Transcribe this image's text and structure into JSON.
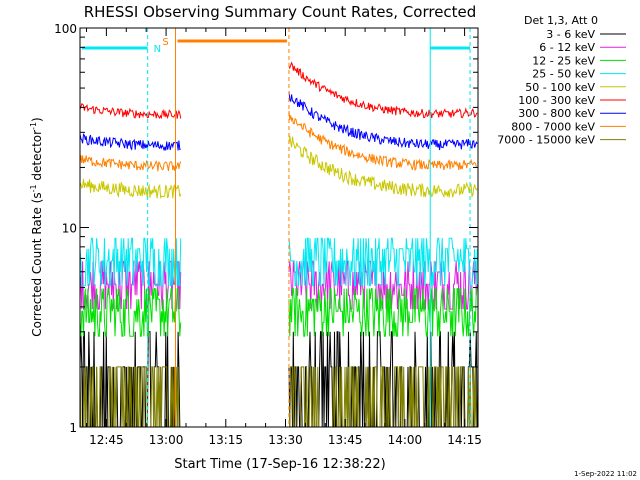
{
  "title": "RHESSI Observing Summary Count Rates, Corrected",
  "footer_date": "1-Sep-2022 11:02",
  "legend": {
    "header": "Det 1,3, Att 0"
  },
  "flags": {
    "n_label": "N",
    "s_label": "S"
  },
  "chart_data": {
    "type": "line",
    "title": "RHESSI Observing Summary Count Rates, Corrected",
    "xlabel": "Start Time (17-Sep-16 12:38:22)",
    "ylabel": "Corrected Count Rate (s⁻¹ detector⁻¹)",
    "ylabel_main": "Corrected Count Rate (s",
    "ylabel_sup1": "-1",
    "ylabel_mid": " detector",
    "ylabel_sup2": "-1",
    "ylabel_end": ")",
    "yscale": "log",
    "ylim": [
      1,
      100
    ],
    "xlim": [
      "12:38:22",
      "14:18:00"
    ],
    "x_tick_labels": [
      "12:45",
      "13:00",
      "13:15",
      "13:30",
      "13:45",
      "14:00",
      "14:15"
    ],
    "x_tick_minutes": [
      45,
      60,
      75,
      90,
      105,
      120,
      135
    ],
    "y_tick_labels": [
      "1",
      "10",
      "100"
    ],
    "legend_position": "top-right, outside plot",
    "series": [
      {
        "name": "3 - 6 keV",
        "color": "#000000",
        "level": 1.6,
        "amp": 0.55,
        "kind": "low"
      },
      {
        "name": "6 - 12 keV",
        "color": "#e020e0",
        "level": 5.2,
        "amp": 0.15,
        "kind": "mid"
      },
      {
        "name": "12 - 25 keV",
        "color": "#00e000",
        "level": 3.8,
        "amp": 0.25,
        "kind": "mid"
      },
      {
        "name": "25 - 50 keV",
        "color": "#00e8f0",
        "level": 6.8,
        "amp": 0.18,
        "kind": "mid"
      },
      {
        "name": "50 - 100 keV",
        "color": "#c8c800",
        "level": 16.5,
        "amp": 0.08,
        "kind": "hi"
      },
      {
        "name": "100 - 300 keV",
        "color": "#ff0000",
        "level": 40,
        "amp": 0.05,
        "kind": "hi"
      },
      {
        "name": "300 - 800 keV",
        "color": "#0000ff",
        "level": 28,
        "amp": 0.06,
        "kind": "hi"
      },
      {
        "name": "800 - 7000 keV",
        "color": "#ff8000",
        "level": 22,
        "amp": 0.06,
        "kind": "hi"
      },
      {
        "name": "7000 - 15000 keV",
        "color": "#808000",
        "level": 1.5,
        "amp": 0.4,
        "kind": "low"
      }
    ],
    "segments_minutes": [
      [
        0,
        25.5
      ],
      [
        52.5,
        100
      ]
    ],
    "saa_interval_minutes": [
      24.0,
      52.5
    ],
    "night_intervals_minutes": [
      [
        0,
        17
      ],
      [
        88,
        98
      ]
    ],
    "colors": {
      "night_flag": "#00e8f0",
      "saa_flag": "#ff8000"
    }
  }
}
